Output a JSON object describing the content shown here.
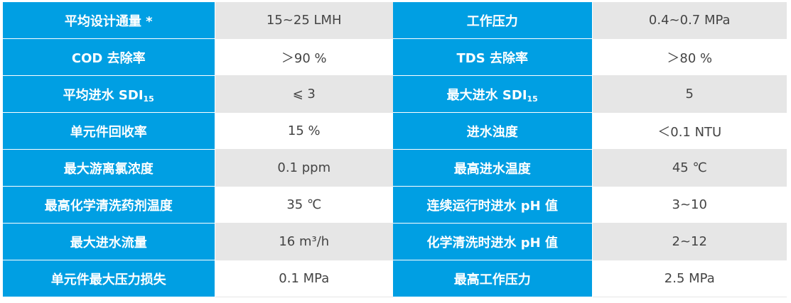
{
  "colors": {
    "label_bg": "#009fe3",
    "odd_row_bg": "#e6e6e6",
    "even_row_bg": "#ffffff"
  },
  "rows": [
    [
      {
        "text": "平均设计通量 *"
      },
      {
        "text": "15~25 LMH"
      },
      {
        "text": "工作压力"
      },
      {
        "text": "0.4~0.7 MPa"
      }
    ],
    [
      {
        "text": "COD 去除率"
      },
      {
        "text": "＞90 %"
      },
      {
        "text": "TDS 去除率"
      },
      {
        "text": "＞80 %"
      }
    ],
    [
      {
        "text": "平均进水 SDI",
        "sub": "15"
      },
      {
        "text": "⩽ 3"
      },
      {
        "text": "最大进水 SDI",
        "sub": "15"
      },
      {
        "text": "5"
      }
    ],
    [
      {
        "text": "单元件回收率"
      },
      {
        "text": "15 %"
      },
      {
        "text": "进水浊度"
      },
      {
        "text": "＜0.1 NTU"
      }
    ],
    [
      {
        "text": "最大游离氯浓度"
      },
      {
        "text": "0.1 ppm"
      },
      {
        "text": "最高进水温度"
      },
      {
        "text": "45 ℃"
      }
    ],
    [
      {
        "text": "最高化学清洗药剂温度"
      },
      {
        "text": "35 ℃"
      },
      {
        "text": "连续运行时进水 pH 值"
      },
      {
        "text": "3~10"
      }
    ],
    [
      {
        "text": "最大进水流量"
      },
      {
        "text": "16 m³/h"
      },
      {
        "text": "化学清洗时进水 pH 值"
      },
      {
        "text": "2~12"
      }
    ],
    [
      {
        "text": "单元件最大压力损失"
      },
      {
        "text": "0.1 MPa"
      },
      {
        "text": "最高工作压力"
      },
      {
        "text": "2.5 MPa"
      }
    ]
  ]
}
